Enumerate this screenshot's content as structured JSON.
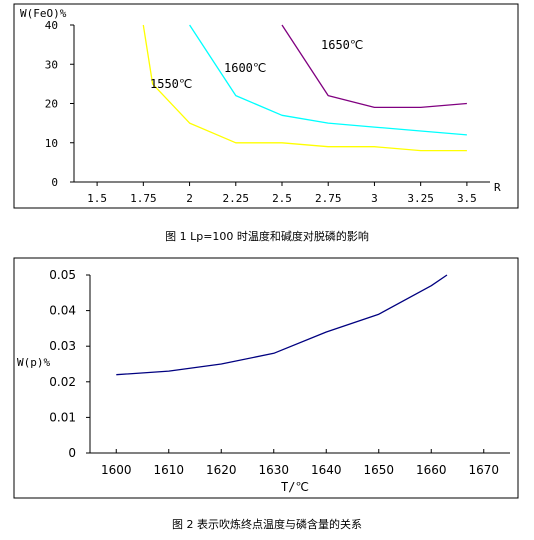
{
  "chart_data": [
    {
      "type": "line",
      "ylabel": "W(FeO)%",
      "xlabel": "R",
      "caption": "图 1   Lp=100 时温度和碱度对脱磷的影响",
      "x_ticks": [
        "1.5",
        "1.75",
        "2",
        "2.25",
        "2.5",
        "2.75",
        "3",
        "3.25",
        "3.5"
      ],
      "y_ticks": [
        "0",
        "10",
        "20",
        "30",
        "40"
      ],
      "xlim": [
        1.375,
        3.625
      ],
      "ylim": [
        0,
        40
      ],
      "grid": false,
      "series": [
        {
          "name": "1550℃",
          "color": "#ffff00",
          "points": [
            [
              1.75,
              40
            ],
            [
              1.8,
              25
            ],
            [
              2.0,
              15
            ],
            [
              2.25,
              10
            ],
            [
              2.5,
              10
            ],
            [
              2.75,
              9
            ],
            [
              3.0,
              9
            ],
            [
              3.25,
              8
            ],
            [
              3.5,
              8
            ]
          ]
        },
        {
          "name": "1600℃",
          "color": "#00ffff",
          "points": [
            [
              2.0,
              40
            ],
            [
              2.25,
              22
            ],
            [
              2.5,
              17
            ],
            [
              2.75,
              15
            ],
            [
              3.0,
              14
            ],
            [
              3.25,
              13
            ],
            [
              3.5,
              12
            ]
          ]
        },
        {
          "name": "1650℃",
          "color": "#800080",
          "points": [
            [
              2.5,
              40
            ],
            [
              2.75,
              22
            ],
            [
              3.0,
              19
            ],
            [
              3.25,
              19
            ],
            [
              3.5,
              20
            ]
          ]
        }
      ]
    },
    {
      "type": "line",
      "ylabel": "W(p)%",
      "xlabel": "T/℃",
      "caption": "图 2   表示吹炼终点温度与磷含量的关系",
      "x_ticks": [
        "1600",
        "1610",
        "1620",
        "1630",
        "1640",
        "1650",
        "1660",
        "1670"
      ],
      "y_ticks": [
        "0",
        "0.01",
        "0.02",
        "0.03",
        "0.04",
        "0.05"
      ],
      "xlim": [
        1595,
        1675
      ],
      "ylim": [
        0,
        0.05
      ],
      "grid": false,
      "series": [
        {
          "color": "#000080",
          "points": [
            [
              1600,
              0.022
            ],
            [
              1610,
              0.023
            ],
            [
              1620,
              0.025
            ],
            [
              1630,
              0.028
            ],
            [
              1640,
              0.034
            ],
            [
              1650,
              0.039
            ],
            [
              1660,
              0.047
            ],
            [
              1663,
              0.05
            ]
          ]
        }
      ]
    }
  ]
}
